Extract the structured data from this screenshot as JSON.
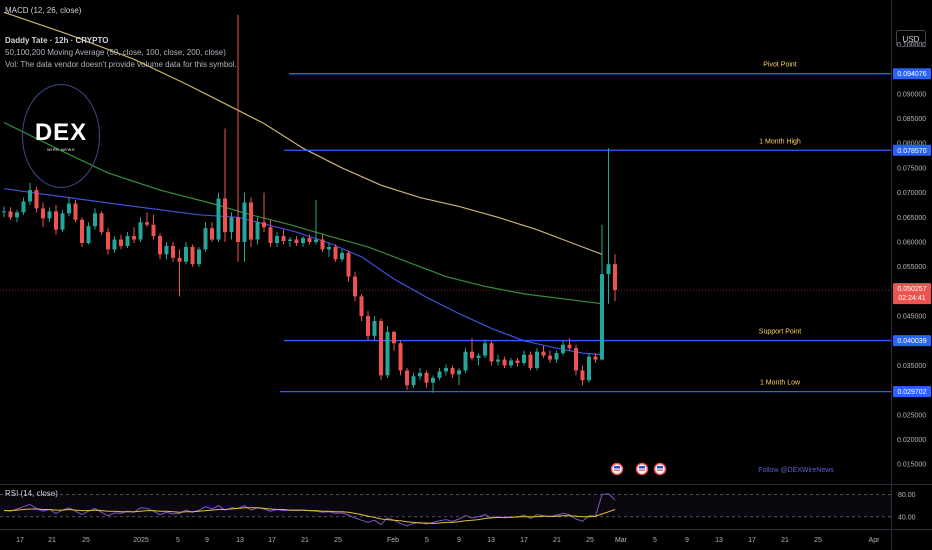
{
  "header": {
    "macd_label": "MACD (12, 26, close)",
    "symbol_line": "Daddy Tate · 12h · CRYPTO",
    "ma_line": "50,100,200 Moving Average (50, close, 100, close, 200, close)",
    "vol_line": "Vol: The data vendor doesn't provide volume data for this symbol."
  },
  "currency_button": "USD",
  "logo": {
    "word": "DEX",
    "sub": "WIRE NEWS"
  },
  "follow_text": "Follow @DEXWireNews",
  "rsi_label": "RSI (14, close)",
  "colors": {
    "background": "#000000",
    "up": "#26a69a",
    "down": "#ef5350",
    "level_line": "#2962ff",
    "level_label": "#ffd166",
    "ma50": "#3f51d8",
    "ma100": "#388e3c",
    "ma200": "#c8b470",
    "rsi": "#7e57c2",
    "rsi_ma": "#e0c040"
  },
  "chart_data": {
    "type": "candlestick",
    "y_axis": {
      "range": [
        0.011,
        0.109
      ],
      "ticks": [
        "0.100000",
        "0.090000",
        "0.085000",
        "0.080000",
        "0.075000",
        "0.070000",
        "0.065000",
        "0.060000",
        "0.055000",
        "0.045000",
        "0.035000",
        "0.030000",
        "0.025000",
        "0.020000",
        "0.015000"
      ]
    },
    "x_axis": {
      "ticks": [
        "17",
        "21",
        "25",
        "2025",
        "5",
        "9",
        "13",
        "17",
        "21",
        "25",
        "Feb",
        "5",
        "9",
        "13",
        "17",
        "21",
        "25",
        "Mar",
        "5",
        "9",
        "13",
        "17",
        "21",
        "25",
        "Apr"
      ]
    },
    "levels": [
      {
        "label": "Pivot Point",
        "value": 0.094076,
        "tag": "0.094076"
      },
      {
        "label": "1 Month High",
        "value": 0.07857,
        "tag": "0.078570"
      },
      {
        "label": "Support Point",
        "value": 0.040039,
        "tag": "0.040039"
      },
      {
        "label": "1 Month Low",
        "value": 0.029702,
        "tag": "0.029702"
      }
    ],
    "last_price": {
      "value": 0.050257,
      "tag": "0.050257",
      "countdown": "02:24:41"
    },
    "candles": [
      [
        0.066,
        0.0672,
        0.065,
        0.0662
      ],
      [
        0.0662,
        0.067,
        0.0645,
        0.065
      ],
      [
        0.065,
        0.0665,
        0.064,
        0.066
      ],
      [
        0.066,
        0.069,
        0.0655,
        0.0682
      ],
      [
        0.0682,
        0.072,
        0.0675,
        0.0705
      ],
      [
        0.0705,
        0.0712,
        0.066,
        0.0668
      ],
      [
        0.0668,
        0.068,
        0.063,
        0.0648
      ],
      [
        0.0648,
        0.067,
        0.064,
        0.0662
      ],
      [
        0.0662,
        0.0675,
        0.0615,
        0.0625
      ],
      [
        0.0625,
        0.0665,
        0.062,
        0.0658
      ],
      [
        0.0658,
        0.069,
        0.0652,
        0.0678
      ],
      [
        0.0678,
        0.0685,
        0.064,
        0.0645
      ],
      [
        0.0645,
        0.065,
        0.059,
        0.0598
      ],
      [
        0.0598,
        0.064,
        0.0595,
        0.0632
      ],
      [
        0.0632,
        0.0668,
        0.0625,
        0.0658
      ],
      [
        0.0658,
        0.0662,
        0.0615,
        0.062
      ],
      [
        0.062,
        0.0628,
        0.0575,
        0.0585
      ],
      [
        0.0585,
        0.0612,
        0.0578,
        0.0605
      ],
      [
        0.0605,
        0.0615,
        0.0585,
        0.0592
      ],
      [
        0.0592,
        0.062,
        0.0588,
        0.0612
      ],
      [
        0.0612,
        0.063,
        0.0598,
        0.0605
      ],
      [
        0.0605,
        0.065,
        0.06,
        0.064
      ],
      [
        0.064,
        0.066,
        0.063,
        0.0635
      ],
      [
        0.0635,
        0.0655,
        0.0605,
        0.0612
      ],
      [
        0.0612,
        0.0618,
        0.0565,
        0.0575
      ],
      [
        0.0575,
        0.06,
        0.0565,
        0.0592
      ],
      [
        0.0592,
        0.06,
        0.056,
        0.0568
      ],
      [
        0.0568,
        0.0585,
        0.049,
        0.056
      ],
      [
        0.056,
        0.06,
        0.0555,
        0.059
      ],
      [
        0.059,
        0.0595,
        0.055,
        0.0555
      ],
      [
        0.0555,
        0.059,
        0.055,
        0.0585
      ],
      [
        0.0585,
        0.064,
        0.058,
        0.0628
      ],
      [
        0.0628,
        0.064,
        0.06,
        0.0605
      ],
      [
        0.0605,
        0.07,
        0.06,
        0.0688
      ],
      [
        0.0688,
        0.083,
        0.06,
        0.062
      ],
      [
        0.062,
        0.066,
        0.0605,
        0.065
      ],
      [
        0.065,
        0.106,
        0.056,
        0.06
      ],
      [
        0.06,
        0.07,
        0.056,
        0.068
      ],
      [
        0.068,
        0.069,
        0.059,
        0.0605
      ],
      [
        0.0605,
        0.065,
        0.0595,
        0.064
      ],
      [
        0.064,
        0.07,
        0.062,
        0.063
      ],
      [
        0.063,
        0.0645,
        0.059,
        0.0598
      ],
      [
        0.0598,
        0.062,
        0.059,
        0.0612
      ],
      [
        0.0612,
        0.0625,
        0.0595,
        0.0602
      ],
      [
        0.0602,
        0.061,
        0.059,
        0.0605
      ],
      [
        0.0605,
        0.0612,
        0.0592,
        0.0598
      ],
      [
        0.0598,
        0.0612,
        0.059,
        0.0608
      ],
      [
        0.0608,
        0.0615,
        0.0595,
        0.06
      ],
      [
        0.06,
        0.0685,
        0.0595,
        0.0605
      ],
      [
        0.0605,
        0.0615,
        0.058,
        0.0585
      ],
      [
        0.0585,
        0.0598,
        0.057,
        0.059
      ],
      [
        0.059,
        0.0595,
        0.056,
        0.0565
      ],
      [
        0.0565,
        0.0585,
        0.056,
        0.0578
      ],
      [
        0.0578,
        0.0582,
        0.052,
        0.053
      ],
      [
        0.053,
        0.054,
        0.048,
        0.049
      ],
      [
        0.049,
        0.0495,
        0.044,
        0.045
      ],
      [
        0.045,
        0.046,
        0.04,
        0.041
      ],
      [
        0.041,
        0.045,
        0.04,
        0.044
      ],
      [
        0.044,
        0.0445,
        0.032,
        0.033
      ],
      [
        0.033,
        0.043,
        0.0325,
        0.0418
      ],
      [
        0.0418,
        0.042,
        0.038,
        0.0395
      ],
      [
        0.0395,
        0.04,
        0.033,
        0.034
      ],
      [
        0.034,
        0.0345,
        0.03,
        0.031
      ],
      [
        0.031,
        0.0335,
        0.0305,
        0.0328
      ],
      [
        0.0328,
        0.0345,
        0.032,
        0.0335
      ],
      [
        0.0335,
        0.034,
        0.0305,
        0.0315
      ],
      [
        0.0315,
        0.033,
        0.0295,
        0.0325
      ],
      [
        0.0325,
        0.0345,
        0.032,
        0.0338
      ],
      [
        0.0338,
        0.0352,
        0.033,
        0.0345
      ],
      [
        0.0345,
        0.035,
        0.0325,
        0.0332
      ],
      [
        0.0332,
        0.0345,
        0.031,
        0.034
      ],
      [
        0.034,
        0.0385,
        0.0335,
        0.0378
      ],
      [
        0.0378,
        0.0405,
        0.036,
        0.0365
      ],
      [
        0.0365,
        0.0375,
        0.035,
        0.037
      ],
      [
        0.037,
        0.0402,
        0.0365,
        0.0395
      ],
      [
        0.0395,
        0.04,
        0.035,
        0.0358
      ],
      [
        0.0358,
        0.0372,
        0.035,
        0.0362
      ],
      [
        0.0362,
        0.0368,
        0.0345,
        0.035
      ],
      [
        0.035,
        0.0365,
        0.0345,
        0.036
      ],
      [
        0.036,
        0.0365,
        0.0348,
        0.0355
      ],
      [
        0.0355,
        0.038,
        0.035,
        0.0372
      ],
      [
        0.0372,
        0.0378,
        0.034,
        0.0345
      ],
      [
        0.0345,
        0.0385,
        0.034,
        0.0378
      ],
      [
        0.0378,
        0.039,
        0.0365,
        0.037
      ],
      [
        0.037,
        0.038,
        0.0355,
        0.0362
      ],
      [
        0.0362,
        0.038,
        0.0355,
        0.0375
      ],
      [
        0.0375,
        0.04,
        0.037,
        0.0392
      ],
      [
        0.0392,
        0.0405,
        0.038,
        0.0385
      ],
      [
        0.0385,
        0.0392,
        0.033,
        0.034
      ],
      [
        0.034,
        0.035,
        0.031,
        0.032
      ],
      [
        0.032,
        0.0375,
        0.0315,
        0.0368
      ],
      [
        0.0368,
        0.0375,
        0.0355,
        0.0362
      ],
      [
        0.0362,
        0.0635,
        0.036,
        0.0535
      ],
      [
        0.0535,
        0.079,
        0.0475,
        0.0555
      ],
      [
        0.0555,
        0.0575,
        0.048,
        0.0503
      ]
    ],
    "moving_averages": [
      {
        "name": "50",
        "points": [
          [
            0,
            0.0708
          ],
          [
            10,
            0.069
          ],
          [
            20,
            0.0672
          ],
          [
            30,
            0.0655
          ],
          [
            36,
            0.065
          ],
          [
            45,
            0.062
          ],
          [
            50,
            0.0598
          ],
          [
            55,
            0.057
          ],
          [
            60,
            0.0525
          ],
          [
            65,
            0.0488
          ],
          [
            70,
            0.0455
          ],
          [
            75,
            0.0425
          ],
          [
            80,
            0.04
          ],
          [
            85,
            0.0385
          ],
          [
            89,
            0.0375
          ],
          [
            92,
            0.0372
          ]
        ]
      },
      {
        "name": "100",
        "points": [
          [
            0,
            0.0842
          ],
          [
            8,
            0.079
          ],
          [
            16,
            0.074
          ],
          [
            24,
            0.0705
          ],
          [
            32,
            0.0678
          ],
          [
            38,
            0.0655
          ],
          [
            44,
            0.0635
          ],
          [
            50,
            0.0612
          ],
          [
            56,
            0.059
          ],
          [
            62,
            0.056
          ],
          [
            68,
            0.053
          ],
          [
            74,
            0.051
          ],
          [
            80,
            0.0495
          ],
          [
            86,
            0.0485
          ],
          [
            92,
            0.0475
          ]
        ]
      },
      {
        "name": "200",
        "points": [
          [
            0,
            0.1065
          ],
          [
            10,
            0.102
          ],
          [
            20,
            0.097
          ],
          [
            28,
            0.092
          ],
          [
            34,
            0.088
          ],
          [
            40,
            0.084
          ],
          [
            46,
            0.079
          ],
          [
            52,
            0.075
          ],
          [
            58,
            0.0715
          ],
          [
            64,
            0.069
          ],
          [
            70,
            0.0672
          ],
          [
            76,
            0.065
          ],
          [
            82,
            0.0625
          ],
          [
            88,
            0.0595
          ],
          [
            92,
            0.0575
          ]
        ]
      }
    ],
    "rsi": {
      "ticks": [
        "80.00",
        "40.00"
      ],
      "range": [
        20,
        95
      ],
      "values": [
        52,
        50,
        54,
        58,
        62,
        55,
        50,
        53,
        46,
        52,
        56,
        50,
        44,
        50,
        55,
        48,
        42,
        47,
        46,
        50,
        48,
        56,
        55,
        50,
        44,
        48,
        45,
        46,
        52,
        48,
        52,
        58,
        54,
        60,
        52,
        56,
        55,
        60,
        52,
        56,
        54,
        50,
        53,
        51,
        52,
        51,
        52,
        51,
        50,
        48,
        49,
        46,
        47,
        43,
        38,
        34,
        30,
        34,
        26,
        38,
        34,
        28,
        24,
        28,
        30,
        27,
        30,
        33,
        35,
        32,
        36,
        42,
        38,
        40,
        44,
        38,
        40,
        38,
        40,
        39,
        43,
        37,
        44,
        42,
        40,
        43,
        46,
        44,
        36,
        32,
        42,
        41,
        80,
        81,
        70
      ],
      "ma_values": [
        51,
        51,
        52,
        53,
        54,
        54,
        53,
        53,
        52,
        52,
        53,
        52,
        51,
        51,
        52,
        51,
        50,
        50,
        49,
        49,
        49,
        50,
        51,
        51,
        50,
        50,
        49,
        48,
        49,
        49,
        50,
        51,
        52,
        53,
        53,
        54,
        55,
        56,
        56,
        56,
        55,
        54,
        53,
        53,
        52,
        52,
        52,
        51,
        51,
        50,
        50,
        49,
        49,
        48,
        46,
        44,
        41,
        39,
        36,
        35,
        34,
        33,
        31,
        30,
        29,
        29,
        28,
        29,
        30,
        30,
        31,
        33,
        34,
        35,
        37,
        38,
        39,
        39,
        39,
        40,
        40,
        40,
        40,
        41,
        41,
        41,
        42,
        42,
        41,
        40,
        40,
        41,
        45,
        49,
        53
      ]
    }
  }
}
